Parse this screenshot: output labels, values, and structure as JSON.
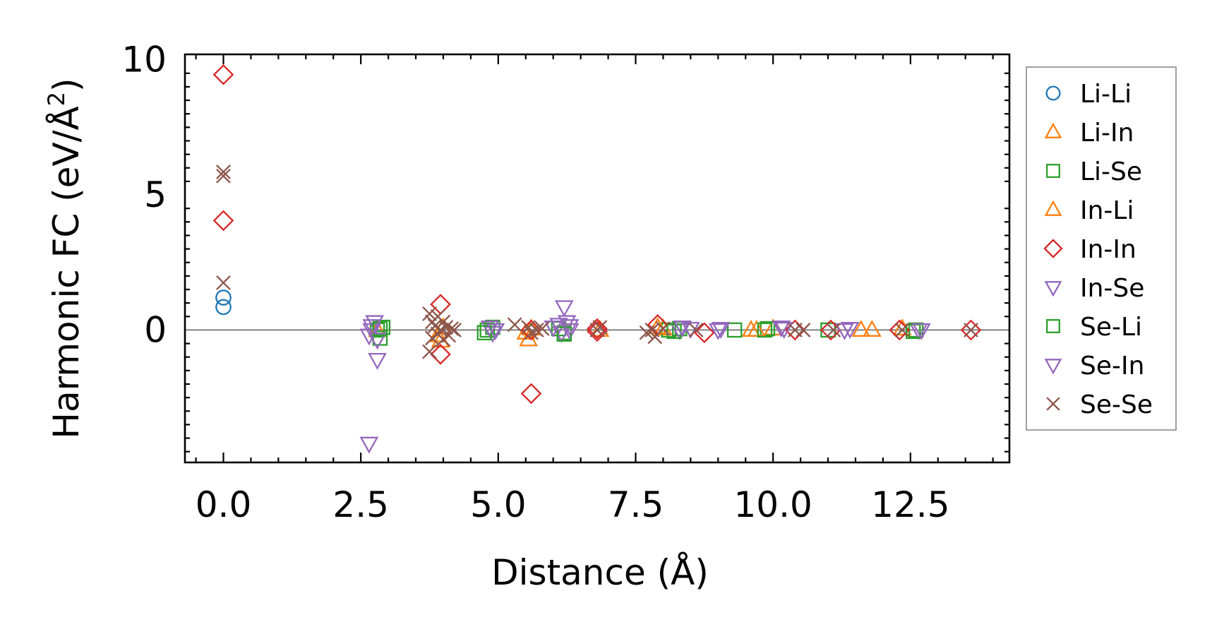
{
  "chart_data": {
    "type": "scatter",
    "title": "",
    "xlabel": "Distance (Å)",
    "ylabel_main": "Harmonic FC (eV/Å",
    "ylabel_sup": "2",
    "ylabel_close": ")",
    "xlim": [
      -0.7,
      14.3
    ],
    "ylim": [
      -4.9,
      10.2
    ],
    "xticks": [
      0.0,
      2.5,
      5.0,
      7.5,
      10.0,
      12.5
    ],
    "xtick_labels": [
      "0.0",
      "2.5",
      "5.0",
      "7.5",
      "10.0",
      "12.5"
    ],
    "yticks": [
      0,
      5,
      10
    ],
    "ytick_labels": [
      "0",
      "5",
      "10"
    ],
    "legend_position": "outside-right",
    "zero_line": true,
    "series": [
      {
        "name": "Li-Li",
        "marker": "circle",
        "color": "#1f77b4",
        "points": [
          [
            0,
            1.2
          ],
          [
            0,
            0.85
          ]
        ]
      },
      {
        "name": "Li-In",
        "marker": "triangle-up",
        "color": "#ff7f0e",
        "points": [
          [
            2.8,
            0.0
          ],
          [
            3.95,
            -0.4
          ],
          [
            4.0,
            0.1
          ],
          [
            5.55,
            -0.35
          ],
          [
            5.6,
            0.05
          ],
          [
            6.85,
            0.0
          ],
          [
            8.0,
            0.05
          ],
          [
            9.6,
            0.0
          ],
          [
            10.0,
            0.05
          ],
          [
            11.8,
            0.0
          ],
          [
            12.35,
            0.05
          ]
        ]
      },
      {
        "name": "Li-Se",
        "marker": "square",
        "color": "#2ca02c",
        "points": [
          [
            2.8,
            0.0
          ],
          [
            2.85,
            -0.3
          ],
          [
            2.9,
            0.1
          ],
          [
            4.8,
            0.0
          ],
          [
            4.9,
            0.1
          ],
          [
            6.1,
            0.05
          ],
          [
            6.2,
            -0.1
          ],
          [
            8.1,
            0.0
          ],
          [
            8.3,
            0.05
          ],
          [
            9.3,
            0.0
          ],
          [
            9.9,
            0.05
          ],
          [
            11.0,
            0.0
          ],
          [
            12.6,
            0.0
          ]
        ]
      },
      {
        "name": "In-Li",
        "marker": "triangle-up",
        "color": "#ff7f0e",
        "points": [
          [
            3.9,
            -0.2
          ],
          [
            5.5,
            -0.1
          ],
          [
            7.9,
            0.1
          ],
          [
            9.7,
            0.0
          ],
          [
            11.6,
            0.0
          ]
        ]
      },
      {
        "name": "In-In",
        "marker": "diamond",
        "color": "#d62728",
        "points": [
          [
            0,
            9.45
          ],
          [
            0,
            4.05
          ],
          [
            3.95,
            0.95
          ],
          [
            3.95,
            -0.9
          ],
          [
            5.6,
            -2.35
          ],
          [
            5.6,
            0.0
          ],
          [
            6.8,
            0.05
          ],
          [
            6.8,
            -0.05
          ],
          [
            7.9,
            0.2
          ],
          [
            8.75,
            -0.1
          ],
          [
            10.4,
            0.0
          ],
          [
            11.05,
            0.0
          ],
          [
            12.3,
            0.0
          ],
          [
            13.6,
            0.0
          ]
        ]
      },
      {
        "name": "In-Se",
        "marker": "triangle-down",
        "color": "#9467bd",
        "points": [
          [
            2.65,
            -0.2
          ],
          [
            2.7,
            0.0
          ],
          [
            2.8,
            -0.35
          ],
          [
            2.75,
            0.3
          ],
          [
            2.8,
            -1.1
          ],
          [
            2.65,
            -4.2
          ],
          [
            4.85,
            0.1
          ],
          [
            4.9,
            -0.1
          ],
          [
            6.1,
            0.2
          ],
          [
            6.15,
            -0.1
          ],
          [
            6.2,
            0.85
          ],
          [
            6.25,
            0.3
          ],
          [
            6.3,
            0.0
          ],
          [
            8.3,
            0.0
          ],
          [
            8.5,
            0.05
          ],
          [
            9.05,
            0.05
          ],
          [
            10.2,
            0.05
          ],
          [
            11.3,
            0.0
          ],
          [
            12.65,
            0.0
          ]
        ]
      },
      {
        "name": "Se-Li",
        "marker": "square",
        "color": "#2ca02c",
        "points": [
          [
            2.85,
            0.05
          ],
          [
            4.75,
            -0.1
          ],
          [
            6.2,
            -0.15
          ],
          [
            8.2,
            -0.05
          ],
          [
            9.85,
            0.0
          ],
          [
            12.55,
            -0.05
          ]
        ]
      },
      {
        "name": "Se-In",
        "marker": "triangle-down",
        "color": "#9467bd",
        "points": [
          [
            2.7,
            0.15
          ],
          [
            4.95,
            0.0
          ],
          [
            6.0,
            0.1
          ],
          [
            6.3,
            0.15
          ],
          [
            8.35,
            0.1
          ],
          [
            9.0,
            0.0
          ],
          [
            10.15,
            0.1
          ],
          [
            11.4,
            0.05
          ],
          [
            12.7,
            0.0
          ]
        ]
      },
      {
        "name": "Se-Se",
        "marker": "x",
        "color": "#8c564b",
        "points": [
          [
            0,
            5.85
          ],
          [
            0,
            5.7
          ],
          [
            0,
            1.75
          ],
          [
            3.75,
            0.6
          ],
          [
            3.8,
            0.3
          ],
          [
            3.8,
            -0.3
          ],
          [
            3.75,
            -0.8
          ],
          [
            3.85,
            0.15
          ],
          [
            3.9,
            -0.15
          ],
          [
            3.9,
            0.5
          ],
          [
            3.95,
            0.0
          ],
          [
            4.0,
            0.3
          ],
          [
            4.0,
            -0.35
          ],
          [
            4.05,
            0.1
          ],
          [
            4.1,
            -0.2
          ],
          [
            4.15,
            0.05
          ],
          [
            4.2,
            0.0
          ],
          [
            5.3,
            0.2
          ],
          [
            5.55,
            0.1
          ],
          [
            5.6,
            -0.1
          ],
          [
            5.7,
            0.0
          ],
          [
            5.8,
            0.05
          ],
          [
            6.8,
            0.0
          ],
          [
            6.85,
            0.1
          ],
          [
            7.7,
            -0.1
          ],
          [
            7.8,
            0.0
          ],
          [
            7.85,
            -0.25
          ],
          [
            8.0,
            0.05
          ],
          [
            8.6,
            0.0
          ],
          [
            10.4,
            0.0
          ],
          [
            10.55,
            0.0
          ],
          [
            11.1,
            0.0
          ],
          [
            12.35,
            0.0
          ],
          [
            13.6,
            0.0
          ]
        ]
      }
    ]
  }
}
